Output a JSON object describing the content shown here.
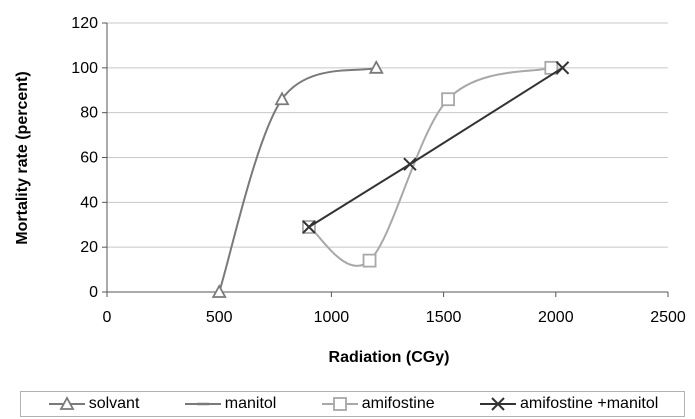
{
  "chart_data": {
    "type": "line",
    "title": "",
    "xlabel": "Radiation (CGy)",
    "ylabel": "Mortality rate (percent)",
    "xlim": [
      0,
      2500
    ],
    "ylim": [
      0,
      120
    ],
    "x_ticks": [
      0,
      500,
      1000,
      1500,
      2000,
      2500
    ],
    "y_ticks": [
      0,
      20,
      40,
      60,
      80,
      100,
      120
    ],
    "grid": "horizontal",
    "legend_position": "bottom",
    "series": [
      {
        "name": "solvant",
        "marker": "triangle",
        "smooth": true,
        "color": "#7a7a7a",
        "points": [
          [
            500,
            0
          ],
          [
            780,
            86
          ],
          [
            1200,
            100
          ]
        ]
      },
      {
        "name": "manitol",
        "marker": "dash",
        "smooth": true,
        "color": "#7a7a7a",
        "points": []
      },
      {
        "name": "amifostine",
        "marker": "square",
        "smooth": true,
        "color": "#a8a8a8",
        "points": [
          [
            900,
            29
          ],
          [
            1170,
            14
          ],
          [
            1520,
            86
          ],
          [
            1980,
            100
          ]
        ]
      },
      {
        "name": "amifostine +manitol",
        "marker": "x",
        "smooth": false,
        "color": "#333333",
        "points": [
          [
            900,
            29
          ],
          [
            1350,
            57
          ],
          [
            2030,
            100
          ]
        ]
      }
    ]
  }
}
